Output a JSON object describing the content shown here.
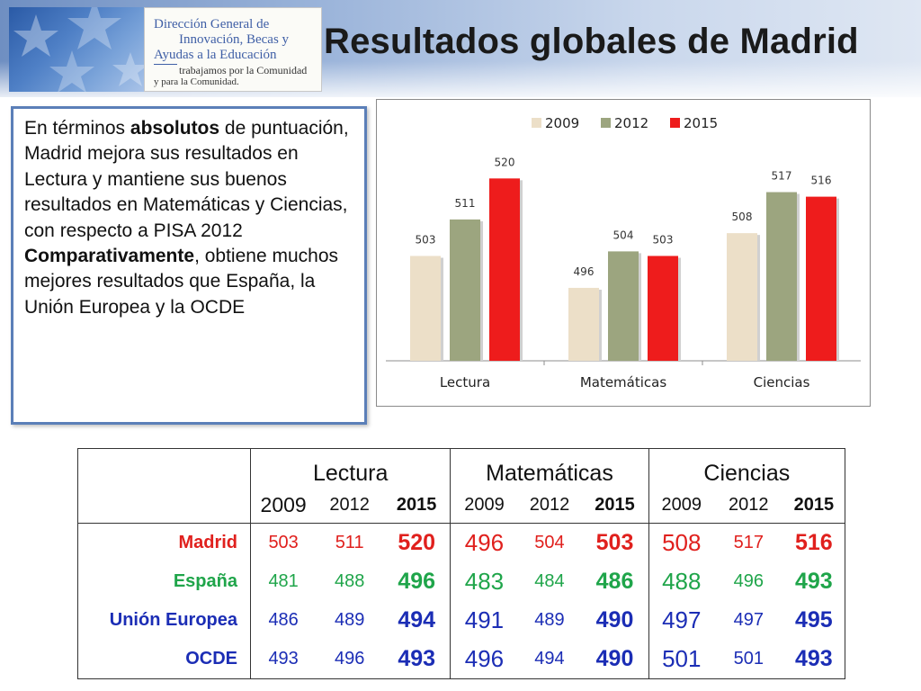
{
  "header": {
    "logo_text": {
      "line1": "Dirección General de",
      "line2": "Innovación, Becas y",
      "line3": "Ayudas a la Educación",
      "line4": "trabajamos por la Comunidad",
      "line5": "y para la Comunidad."
    },
    "title": "Resultados globales de Madrid"
  },
  "textbox": {
    "seg1": "En términos ",
    "seg2": "absolutos",
    "seg3": " de puntuación, Madrid mejora sus resultados en Lectura y mantiene sus buenos resultados en Matemáticas y Ciencias, con respecto a PISA 2012 ",
    "seg4": "Comparativamente",
    "seg5": ", obtiene muchos mejores resultados que España, la Unión Europea y la OCDE"
  },
  "chart_data": {
    "type": "bar",
    "categories": [
      "Lectura",
      "Matemáticas",
      "Ciencias"
    ],
    "series": [
      {
        "name": "2009",
        "values": [
          503,
          496,
          508
        ],
        "color": "#ecdfc8"
      },
      {
        "name": "2012",
        "values": [
          511,
          504,
          517
        ],
        "color": "#9ca57f"
      },
      {
        "name": "2015",
        "values": [
          520,
          503,
          516
        ],
        "color": "#ee1c1c"
      }
    ],
    "ylim": [
      480,
      525
    ],
    "legend": "top",
    "grid": false,
    "data_labels": true
  },
  "table": {
    "groups": [
      "Lectura",
      "Matemáticas",
      "Ciencias"
    ],
    "years": [
      "2009",
      "2012",
      "2015"
    ],
    "rows": [
      {
        "label": "Madrid",
        "values": [
          "503",
          "511",
          "520",
          "496",
          "504",
          "503",
          "508",
          "517",
          "516"
        ],
        "color": "#e0201d"
      },
      {
        "label": "España",
        "values": [
          "481",
          "488",
          "496",
          "483",
          "484",
          "486",
          "488",
          "496",
          "493"
        ],
        "color": "#1fa54a"
      },
      {
        "label": "Unión Europea",
        "values": [
          "486",
          "489",
          "494",
          "491",
          "489",
          "490",
          "497",
          "497",
          "495"
        ],
        "color": "#1b2db5"
      },
      {
        "label": "OCDE",
        "values": [
          "493",
          "496",
          "493",
          "496",
          "494",
          "490",
          "501",
          "501",
          "493"
        ],
        "color": "#1b2db5"
      }
    ]
  }
}
